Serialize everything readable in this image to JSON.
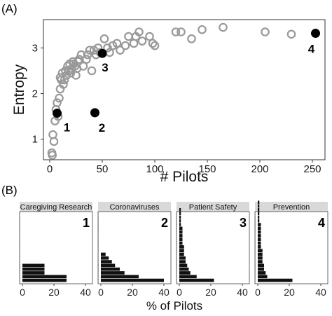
{
  "colors": {
    "hollow_stroke": "#999999",
    "highlight_fill": "#000000",
    "bar_fill": "#111111",
    "strip_fill": "#d9d9d9",
    "axis": "#333333"
  },
  "chart_data": [
    {
      "panel_label": "(A)",
      "type": "scatter",
      "title": "",
      "xlabel": "# Pilots",
      "ylabel": "Entropy",
      "xlim": [
        -6,
        262
      ],
      "ylim": [
        0.55,
        3.62
      ],
      "xticks": [
        0,
        50,
        100,
        150,
        200,
        250
      ],
      "yticks": [
        1,
        2,
        3
      ],
      "grid": false,
      "series": [
        {
          "style": "hollow",
          "points": [
            [
              2,
              0.7
            ],
            [
              2.5,
              0.65
            ],
            [
              3,
              1.1
            ],
            [
              4,
              0.95
            ],
            [
              5,
              1.4
            ],
            [
              6,
              1.65
            ],
            [
              7,
              1.8
            ],
            [
              8,
              1.5
            ],
            [
              9,
              1.9
            ],
            [
              10,
              2.1
            ],
            [
              10,
              2.35
            ],
            [
              11,
              2.3
            ],
            [
              12,
              2.45
            ],
            [
              13,
              2.2
            ],
            [
              14,
              2.3
            ],
            [
              15,
              2.5
            ],
            [
              16,
              2.4
            ],
            [
              17,
              2.6
            ],
            [
              18,
              2.5
            ],
            [
              19,
              2.65
            ],
            [
              20,
              2.45
            ],
            [
              21,
              2.55
            ],
            [
              22,
              2.7
            ],
            [
              23,
              2.65
            ],
            [
              24,
              2.6
            ],
            [
              25,
              2.4
            ],
            [
              26,
              2.55
            ],
            [
              27,
              2.7
            ],
            [
              28,
              2.75
            ],
            [
              30,
              2.85
            ],
            [
              32,
              2.6
            ],
            [
              35,
              2.75
            ],
            [
              36,
              2.85
            ],
            [
              38,
              2.95
            ],
            [
              40,
              2.5
            ],
            [
              42,
              2.95
            ],
            [
              44,
              2.85
            ],
            [
              46,
              3.0
            ],
            [
              48,
              2.9
            ],
            [
              52,
              3.2
            ],
            [
              55,
              3.0
            ],
            [
              57,
              2.9
            ],
            [
              60,
              3.05
            ],
            [
              64,
              3.1
            ],
            [
              67,
              2.95
            ],
            [
              72,
              3.05
            ],
            [
              75,
              3.25
            ],
            [
              80,
              3.1
            ],
            [
              82,
              3.25
            ],
            [
              85,
              3.35
            ],
            [
              88,
              3.15
            ],
            [
              95,
              3.25
            ],
            [
              98,
              3.1
            ],
            [
              100,
              3.05
            ],
            [
              120,
              3.35
            ],
            [
              125,
              3.35
            ],
            [
              135,
              3.2
            ],
            [
              145,
              3.4
            ],
            [
              165,
              3.45
            ],
            [
              205,
              3.35
            ],
            [
              230,
              3.3
            ]
          ]
        },
        {
          "style": "filled",
          "points": [
            {
              "x": 7,
              "y": 1.57,
              "label": "1"
            },
            {
              "x": 43,
              "y": 1.58,
              "label": "2"
            },
            {
              "x": 50,
              "y": 2.88,
              "label": "3"
            },
            {
              "x": 253,
              "y": 3.32,
              "label": "4"
            }
          ]
        }
      ]
    },
    {
      "panel_label": "(B)",
      "type": "bar",
      "orientation": "horizontal",
      "xlabel": "% of Pilots",
      "xlim": [
        0,
        40
      ],
      "xticks": [
        0,
        20,
        40
      ],
      "facets": [
        {
          "strip": "Caregiving Research",
          "number": "1",
          "values": [
            28,
            28,
            14,
            14,
            14
          ]
        },
        {
          "strip": "Coronaviruses",
          "number": "2",
          "values": [
            40,
            24,
            15,
            12,
            9,
            7,
            5,
            3
          ]
        },
        {
          "strip": "Patient Safety",
          "number": "3",
          "values": [
            22,
            11,
            7,
            6,
            5,
            4,
            4,
            3,
            3,
            3,
            2,
            2,
            2,
            2,
            2,
            1,
            1,
            1,
            1,
            1
          ]
        },
        {
          "strip": "Prevention",
          "number": "4",
          "values": [
            22,
            6,
            5,
            4,
            4,
            3,
            3,
            3,
            3,
            2,
            2,
            2,
            2,
            2,
            2,
            2,
            1,
            1,
            1,
            1,
            1,
            1
          ]
        }
      ]
    }
  ]
}
